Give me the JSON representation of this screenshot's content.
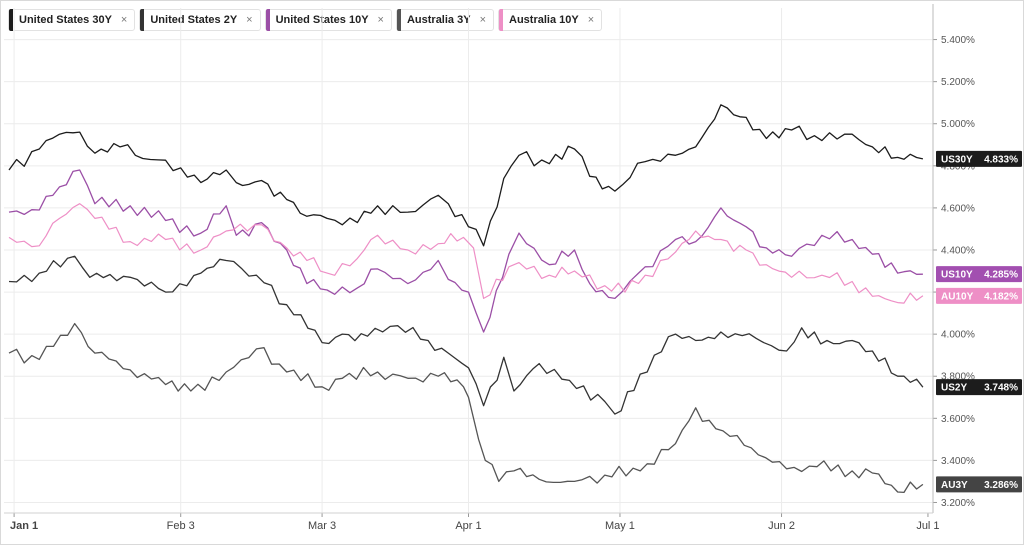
{
  "legend": [
    {
      "label": "United States 30Y",
      "color": "#1c1c1c",
      "close": "×"
    },
    {
      "label": "United States 2Y",
      "color": "#333333",
      "close": "×"
    },
    {
      "label": "United States 10Y",
      "color": "#9b4fa6",
      "close": "×"
    },
    {
      "label": "Australia 3Y",
      "color": "#555555",
      "close": "×"
    },
    {
      "label": "Australia 10Y",
      "color": "#ee8fc6",
      "close": "×"
    }
  ],
  "chart_data": {
    "type": "line",
    "x_ticks": [
      {
        "label": "Jan 1",
        "date": "2025-01-01"
      },
      {
        "label": "Feb 3",
        "date": "2025-02-03"
      },
      {
        "label": "Mar 3",
        "date": "2025-03-03"
      },
      {
        "label": "Apr 1",
        "date": "2025-04-01"
      },
      {
        "label": "May 1",
        "date": "2025-05-01"
      },
      {
        "label": "Jun 2",
        "date": "2025-06-02"
      },
      {
        "label": "Jul 1",
        "date": "2025-07-01"
      }
    ],
    "y_ticks": [
      "3.200%",
      "3.400%",
      "3.600%",
      "3.800%",
      "4.000%",
      "4.200%",
      "4.400%",
      "4.600%",
      "4.800%",
      "5.000%",
      "5.200%",
      "5.400%"
    ],
    "ylim": [
      3.15,
      5.55
    ],
    "xlim": [
      "2024-12-30",
      "2025-07-02"
    ],
    "grid": true,
    "series": [
      {
        "name": "United States 30Y",
        "short": "US30Y",
        "last": "4.833%",
        "last_value": 4.833,
        "color": "#1c1c1c",
        "tag_color": "#1c1c1c",
        "points": [
          [
            "2024-12-31",
            4.78
          ],
          [
            "2025-01-06",
            4.88
          ],
          [
            "2025-01-10",
            4.95
          ],
          [
            "2025-01-14",
            4.96
          ],
          [
            "2025-01-17",
            4.86
          ],
          [
            "2025-01-22",
            4.89
          ],
          [
            "2025-01-28",
            4.83
          ],
          [
            "2025-02-03",
            4.79
          ],
          [
            "2025-02-07",
            4.72
          ],
          [
            "2025-02-12",
            4.78
          ],
          [
            "2025-02-14",
            4.72
          ],
          [
            "2025-02-19",
            4.73
          ],
          [
            "2025-02-24",
            4.64
          ],
          [
            "2025-02-28",
            4.56
          ],
          [
            "2025-03-04",
            4.55
          ],
          [
            "2025-03-10",
            4.53
          ],
          [
            "2025-03-14",
            4.61
          ],
          [
            "2025-03-20",
            4.58
          ],
          [
            "2025-03-26",
            4.66
          ],
          [
            "2025-03-28",
            4.62
          ],
          [
            "2025-04-01",
            4.51
          ],
          [
            "2025-04-04",
            4.42
          ],
          [
            "2025-04-08",
            4.74
          ],
          [
            "2025-04-11",
            4.85
          ],
          [
            "2025-04-17",
            4.81
          ],
          [
            "2025-04-22",
            4.88
          ],
          [
            "2025-04-25",
            4.75
          ],
          [
            "2025-04-30",
            4.68
          ],
          [
            "2025-05-06",
            4.82
          ],
          [
            "2025-05-12",
            4.85
          ],
          [
            "2025-05-16",
            4.89
          ],
          [
            "2025-05-21",
            5.09
          ],
          [
            "2025-05-26",
            5.03
          ],
          [
            "2025-05-30",
            4.93
          ],
          [
            "2025-06-04",
            4.97
          ],
          [
            "2025-06-10",
            4.92
          ],
          [
            "2025-06-16",
            4.95
          ],
          [
            "2025-06-20",
            4.89
          ],
          [
            "2025-06-25",
            4.84
          ],
          [
            "2025-06-30",
            4.833
          ]
        ]
      },
      {
        "name": "United States 2Y",
        "short": "US2Y",
        "last": "3.748%",
        "last_value": 3.748,
        "color": "#333333",
        "tag_color": "#1c1c1c",
        "points": [
          [
            "2024-12-31",
            4.25
          ],
          [
            "2025-01-06",
            4.29
          ],
          [
            "2025-01-13",
            4.37
          ],
          [
            "2025-01-16",
            4.27
          ],
          [
            "2025-01-24",
            4.27
          ],
          [
            "2025-01-31",
            4.2
          ],
          [
            "2025-02-07",
            4.29
          ],
          [
            "2025-02-12",
            4.35
          ],
          [
            "2025-02-18",
            4.28
          ],
          [
            "2025-02-24",
            4.14
          ],
          [
            "2025-03-03",
            3.96
          ],
          [
            "2025-03-07",
            4.0
          ],
          [
            "2025-03-12",
            3.99
          ],
          [
            "2025-03-18",
            4.04
          ],
          [
            "2025-03-24",
            3.97
          ],
          [
            "2025-03-28",
            3.91
          ],
          [
            "2025-04-01",
            3.84
          ],
          [
            "2025-04-04",
            3.66
          ],
          [
            "2025-04-08",
            3.89
          ],
          [
            "2025-04-10",
            3.73
          ],
          [
            "2025-04-15",
            3.86
          ],
          [
            "2025-04-21",
            3.78
          ],
          [
            "2025-04-28",
            3.68
          ],
          [
            "2025-04-30",
            3.62
          ],
          [
            "2025-05-05",
            3.81
          ],
          [
            "2025-05-12",
            4.0
          ],
          [
            "2025-05-16",
            3.97
          ],
          [
            "2025-05-21",
            4.01
          ],
          [
            "2025-05-28",
            3.98
          ],
          [
            "2025-06-03",
            3.92
          ],
          [
            "2025-06-06",
            4.03
          ],
          [
            "2025-06-11",
            3.97
          ],
          [
            "2025-06-16",
            3.97
          ],
          [
            "2025-06-20",
            3.92
          ],
          [
            "2025-06-25",
            3.8
          ],
          [
            "2025-06-30",
            3.748
          ]
        ]
      },
      {
        "name": "United States 10Y",
        "short": "US10Y",
        "last": "4.285%",
        "last_value": 4.285,
        "color": "#9b4fa6",
        "tag_color": "#a24fb0",
        "points": [
          [
            "2024-12-31",
            4.58
          ],
          [
            "2025-01-06",
            4.59
          ],
          [
            "2025-01-10",
            4.7
          ],
          [
            "2025-01-14",
            4.78
          ],
          [
            "2025-01-17",
            4.62
          ],
          [
            "2025-01-24",
            4.61
          ],
          [
            "2025-01-31",
            4.54
          ],
          [
            "2025-02-07",
            4.48
          ],
          [
            "2025-02-12",
            4.61
          ],
          [
            "2025-02-14",
            4.47
          ],
          [
            "2025-02-19",
            4.53
          ],
          [
            "2025-02-24",
            4.4
          ],
          [
            "2025-02-28",
            4.24
          ],
          [
            "2025-03-04",
            4.21
          ],
          [
            "2025-03-10",
            4.22
          ],
          [
            "2025-03-14",
            4.31
          ],
          [
            "2025-03-20",
            4.24
          ],
          [
            "2025-03-26",
            4.35
          ],
          [
            "2025-03-28",
            4.26
          ],
          [
            "2025-04-01",
            4.2
          ],
          [
            "2025-04-04",
            4.01
          ],
          [
            "2025-04-09",
            4.38
          ],
          [
            "2025-04-11",
            4.48
          ],
          [
            "2025-04-17",
            4.33
          ],
          [
            "2025-04-22",
            4.4
          ],
          [
            "2025-04-25",
            4.24
          ],
          [
            "2025-04-30",
            4.17
          ],
          [
            "2025-05-06",
            4.32
          ],
          [
            "2025-05-12",
            4.45
          ],
          [
            "2025-05-16",
            4.44
          ],
          [
            "2025-05-21",
            4.6
          ],
          [
            "2025-05-26",
            4.51
          ],
          [
            "2025-05-30",
            4.41
          ],
          [
            "2025-06-04",
            4.37
          ],
          [
            "2025-06-10",
            4.47
          ],
          [
            "2025-06-16",
            4.45
          ],
          [
            "2025-06-20",
            4.38
          ],
          [
            "2025-06-25",
            4.29
          ],
          [
            "2025-06-30",
            4.285
          ]
        ]
      },
      {
        "name": "Australia 3Y",
        "short": "AU3Y",
        "last": "3.286%",
        "last_value": 3.286,
        "color": "#555555",
        "tag_color": "#444444",
        "points": [
          [
            "2024-12-31",
            3.91
          ],
          [
            "2025-01-06",
            3.88
          ],
          [
            "2025-01-13",
            4.05
          ],
          [
            "2025-01-17",
            3.91
          ],
          [
            "2025-01-24",
            3.83
          ],
          [
            "2025-01-31",
            3.76
          ],
          [
            "2025-02-05",
            3.73
          ],
          [
            "2025-02-12",
            3.82
          ],
          [
            "2025-02-18",
            3.93
          ],
          [
            "2025-02-24",
            3.82
          ],
          [
            "2025-03-03",
            3.75
          ],
          [
            "2025-03-07",
            3.79
          ],
          [
            "2025-03-14",
            3.82
          ],
          [
            "2025-03-20",
            3.79
          ],
          [
            "2025-03-26",
            3.8
          ],
          [
            "2025-03-31",
            3.75
          ],
          [
            "2025-04-01",
            3.7
          ],
          [
            "2025-04-03",
            3.5
          ],
          [
            "2025-04-07",
            3.3
          ],
          [
            "2025-04-10",
            3.35
          ],
          [
            "2025-04-15",
            3.31
          ],
          [
            "2025-04-22",
            3.3
          ],
          [
            "2025-04-28",
            3.33
          ],
          [
            "2025-05-05",
            3.35
          ],
          [
            "2025-05-12",
            3.48
          ],
          [
            "2025-05-16",
            3.65
          ],
          [
            "2025-05-20",
            3.55
          ],
          [
            "2025-05-27",
            3.46
          ],
          [
            "2025-06-03",
            3.36
          ],
          [
            "2025-06-09",
            3.37
          ],
          [
            "2025-06-16",
            3.35
          ],
          [
            "2025-06-20",
            3.34
          ],
          [
            "2025-06-25",
            3.25
          ],
          [
            "2025-06-30",
            3.286
          ]
        ]
      },
      {
        "name": "Australia 10Y",
        "short": "AU10Y",
        "last": "4.182%",
        "last_value": 4.182,
        "color": "#ee8fc6",
        "tag_color": "#ee8fc6",
        "points": [
          [
            "2024-12-31",
            4.46
          ],
          [
            "2025-01-06",
            4.42
          ],
          [
            "2025-01-10",
            4.55
          ],
          [
            "2025-01-14",
            4.62
          ],
          [
            "2025-01-17",
            4.55
          ],
          [
            "2025-01-24",
            4.44
          ],
          [
            "2025-01-31",
            4.45
          ],
          [
            "2025-02-07",
            4.4
          ],
          [
            "2025-02-12",
            4.49
          ],
          [
            "2025-02-19",
            4.52
          ],
          [
            "2025-02-24",
            4.41
          ],
          [
            "2025-02-28",
            4.35
          ],
          [
            "2025-03-04",
            4.29
          ],
          [
            "2025-03-10",
            4.36
          ],
          [
            "2025-03-14",
            4.47
          ],
          [
            "2025-03-20",
            4.4
          ],
          [
            "2025-03-26",
            4.43
          ],
          [
            "2025-03-31",
            4.46
          ],
          [
            "2025-04-02",
            4.41
          ],
          [
            "2025-04-04",
            4.17
          ],
          [
            "2025-04-09",
            4.32
          ],
          [
            "2025-04-11",
            4.34
          ],
          [
            "2025-04-17",
            4.28
          ],
          [
            "2025-04-22",
            4.3
          ],
          [
            "2025-04-28",
            4.23
          ],
          [
            "2025-05-02",
            4.2
          ],
          [
            "2025-05-06",
            4.28
          ],
          [
            "2025-05-12",
            4.39
          ],
          [
            "2025-05-16",
            4.49
          ],
          [
            "2025-05-21",
            4.45
          ],
          [
            "2025-05-26",
            4.4
          ],
          [
            "2025-05-30",
            4.33
          ],
          [
            "2025-06-04",
            4.27
          ],
          [
            "2025-06-10",
            4.28
          ],
          [
            "2025-06-16",
            4.25
          ],
          [
            "2025-06-20",
            4.18
          ],
          [
            "2025-06-25",
            4.15
          ],
          [
            "2025-06-30",
            4.182
          ]
        ]
      }
    ]
  }
}
